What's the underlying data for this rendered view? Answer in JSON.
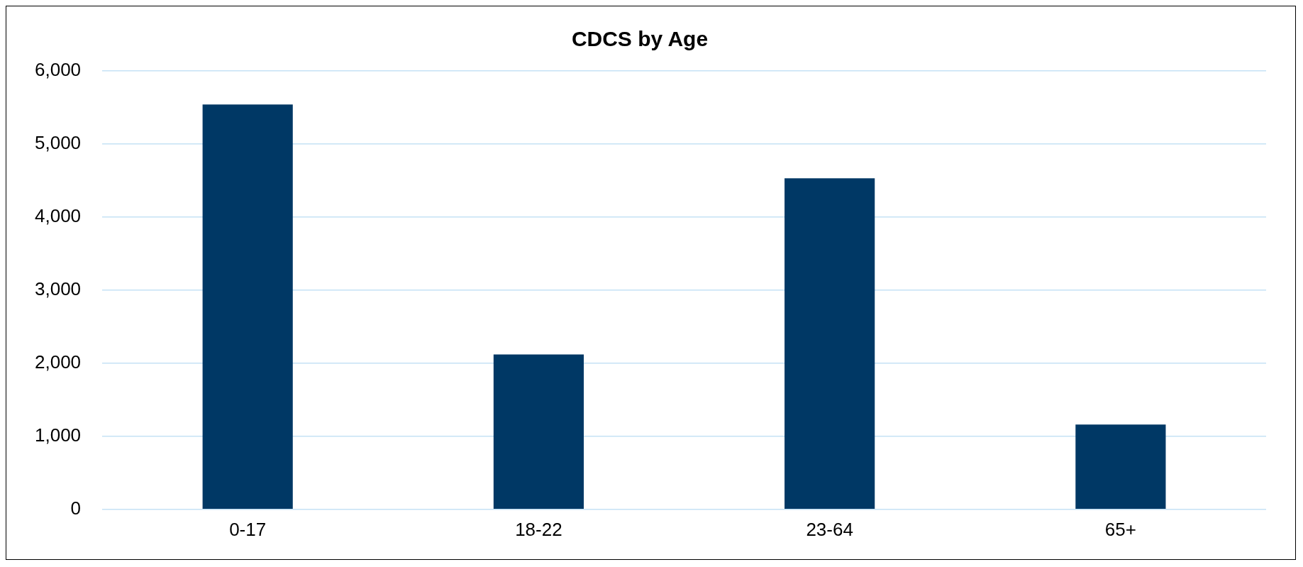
{
  "chart_data": {
    "type": "bar",
    "title": "CDCS by Age",
    "categories": [
      "0-17",
      "18-22",
      "23-64",
      "65+"
    ],
    "values": [
      5540,
      2120,
      4530,
      1160
    ],
    "color": "#003865",
    "ylim": [
      0,
      6000
    ],
    "yticks": [
      {
        "value": 0,
        "label": "0"
      },
      {
        "value": 1000,
        "label": "1,000"
      },
      {
        "value": 2000,
        "label": "2,000"
      },
      {
        "value": 3000,
        "label": "3,000"
      },
      {
        "value": 4000,
        "label": "4,000"
      },
      {
        "value": 5000,
        "label": "5,000"
      },
      {
        "value": 6000,
        "label": "6,000"
      }
    ],
    "grid": "y",
    "legend": false
  }
}
